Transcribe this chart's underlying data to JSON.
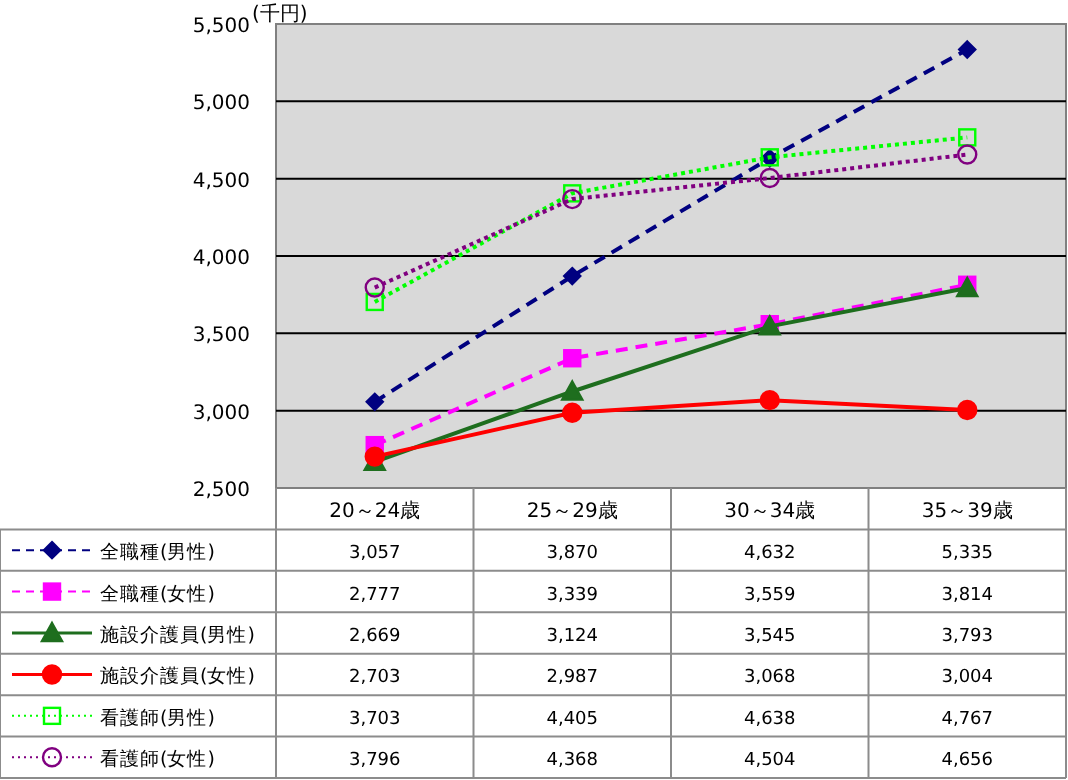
{
  "chart_data": {
    "type": "line",
    "ylabel": "(千円)",
    "categories": [
      "20～24歳",
      "25～29歳",
      "30～34歳",
      "35～39歳"
    ],
    "ylim": [
      2500,
      5500
    ],
    "yticks": [
      {
        "value": 2500,
        "label": "2,500"
      },
      {
        "value": 3000,
        "label": "3,000"
      },
      {
        "value": 3500,
        "label": "3,500"
      },
      {
        "value": 4000,
        "label": "4,000"
      },
      {
        "value": 4500,
        "label": "4,500"
      },
      {
        "value": 5000,
        "label": "5,000"
      },
      {
        "value": 5500,
        "label": "5,500"
      }
    ],
    "grid": "y",
    "legend": "bottom",
    "series": [
      {
        "name": "全職種(男性)",
        "color": "#000080",
        "marker": "diamond",
        "line_style": "dashed",
        "values": [
          3057,
          3870,
          4632,
          5335
        ],
        "value_labels": [
          "3,057",
          "3,870",
          "4,632",
          "5,335"
        ]
      },
      {
        "name": "全職種(女性)",
        "color": "#ff00ff",
        "marker": "square",
        "line_style": "dashed",
        "values": [
          2777,
          3339,
          3559,
          3814
        ],
        "value_labels": [
          "2,777",
          "3,339",
          "3,559",
          "3,814"
        ]
      },
      {
        "name": "施設介護員(男性)",
        "color": "#1e6e1e",
        "marker": "triangle",
        "line_style": "solid",
        "values": [
          2669,
          3124,
          3545,
          3793
        ],
        "value_labels": [
          "2,669",
          "3,124",
          "3,545",
          "3,793"
        ]
      },
      {
        "name": "施設介護員(女性)",
        "color": "#ff0000",
        "marker": "circle",
        "line_style": "solid",
        "values": [
          2703,
          2987,
          3068,
          3004
        ],
        "value_labels": [
          "2,703",
          "2,987",
          "3,068",
          "3,004"
        ]
      },
      {
        "name": "看護師(男性)",
        "color": "#00ff00",
        "marker": "square",
        "line_style": "dotted",
        "values": [
          3703,
          4405,
          4638,
          4767
        ],
        "value_labels": [
          "3,703",
          "4,405",
          "4,638",
          "4,767"
        ]
      },
      {
        "name": "看護師(女性)",
        "color": "#800080",
        "marker": "circle",
        "line_style": "dotted",
        "values": [
          3796,
          4368,
          4504,
          4656
        ],
        "value_labels": [
          "3,796",
          "4,368",
          "4,504",
          "4,656"
        ]
      }
    ]
  }
}
